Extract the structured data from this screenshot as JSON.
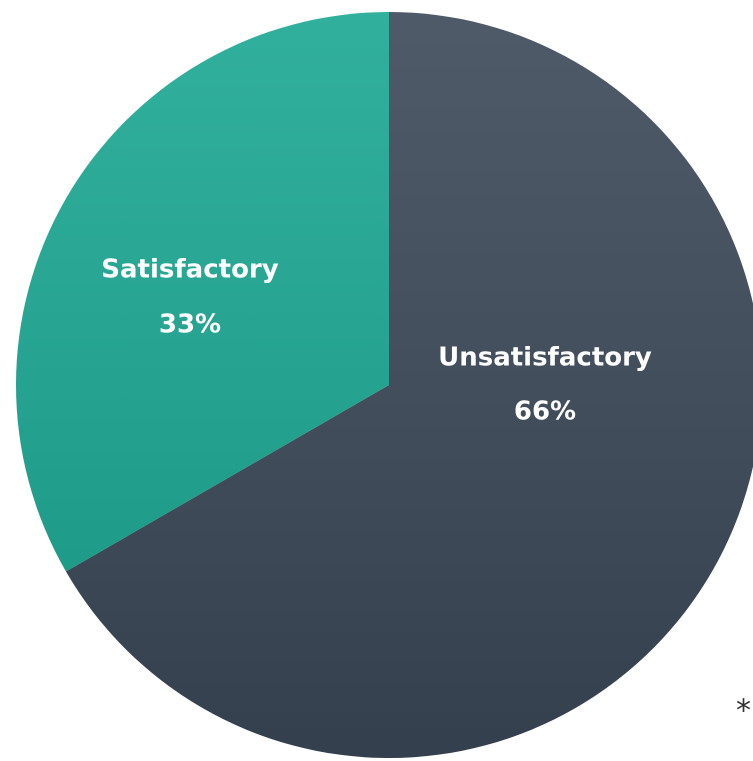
{
  "chart_data": {
    "type": "pie",
    "categories": [
      "Unsatisfactory",
      "Satisfactory"
    ],
    "values": [
      66,
      33
    ],
    "value_labels": [
      "66%",
      "33%"
    ],
    "colors": [
      "#3b4858",
      "#1aa792"
    ],
    "annotation": "*"
  }
}
